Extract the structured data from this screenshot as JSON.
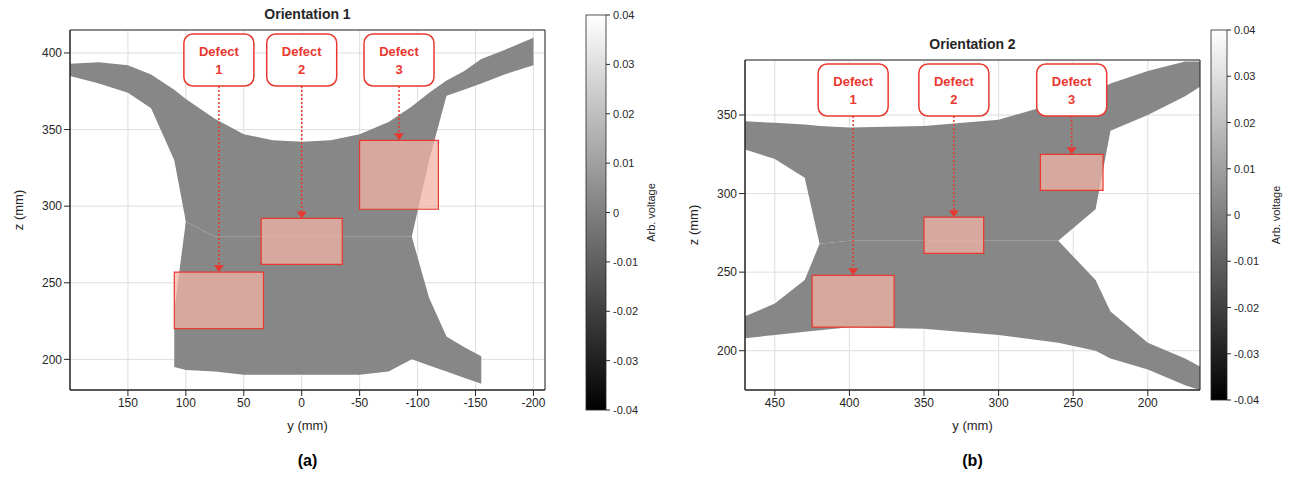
{
  "chart_data": [
    {
      "type": "heatmap",
      "title": "Orientation 1",
      "panel_label": "(a)",
      "x_label": "y (mm)",
      "y_label": "z (mm)",
      "xlim": [
        200,
        -210
      ],
      "xticks": [
        150,
        100,
        50,
        0,
        -50,
        -100,
        -150,
        -200
      ],
      "ylim": [
        180,
        415
      ],
      "yticks": [
        200,
        250,
        300,
        350,
        400
      ],
      "grid": true,
      "specimen": {
        "color": "#878787",
        "y": [
          200,
          175,
          150,
          130,
          110,
          100,
          75,
          50,
          25,
          0,
          -25,
          -50,
          -75,
          -95,
          -110,
          -125,
          -140,
          -155,
          -175,
          -200
        ],
        "upper": [
          [
            385,
            393
          ],
          [
            380,
            394
          ],
          [
            374,
            392
          ],
          [
            364,
            386
          ],
          [
            330,
            376
          ],
          [
            290,
            370
          ],
          [
            280,
            357
          ],
          [
            280,
            347
          ],
          [
            280,
            343
          ],
          [
            280,
            342
          ],
          [
            280,
            343
          ],
          [
            280,
            347
          ],
          [
            280,
            355
          ],
          [
            280,
            365
          ],
          [
            330,
            374
          ],
          [
            372,
            382
          ],
          [
            376,
            388
          ],
          [
            380,
            396
          ],
          [
            386,
            402
          ],
          [
            392,
            410
          ]
        ],
        "lower": [
          null,
          null,
          null,
          null,
          [
            195,
            232
          ],
          [
            193,
            290
          ],
          [
            192,
            280
          ],
          [
            190,
            280
          ],
          [
            190,
            280
          ],
          [
            190,
            280
          ],
          [
            190,
            280
          ],
          [
            190,
            280
          ],
          [
            192,
            280
          ],
          [
            200,
            280
          ],
          [
            196,
            240
          ],
          [
            192,
            215
          ],
          [
            188,
            208
          ],
          [
            184,
            202
          ],
          null,
          null
        ]
      },
      "defects": [
        {
          "label": "Defect 1",
          "y": [
            110,
            33
          ],
          "z": [
            220,
            257
          ],
          "color": "#e8382f"
        },
        {
          "label": "Defect 2",
          "y": [
            35,
            -35
          ],
          "z": [
            262,
            292
          ],
          "color": "#e8382f"
        },
        {
          "label": "Defect 3",
          "y": [
            -50,
            -118
          ],
          "z": [
            298,
            343
          ],
          "color": "#e8382f"
        }
      ],
      "colorbar": {
        "range": [
          -0.04,
          0.04
        ],
        "ticks": [
          0.04,
          0.03,
          0.02,
          0.01,
          0,
          -0.01,
          -0.02,
          -0.03,
          -0.04
        ],
        "label": "Arb. voltage"
      }
    },
    {
      "type": "heatmap",
      "title": "Orientation 2",
      "panel_label": "(b)",
      "x_label": "y (mm)",
      "y_label": "z (mm)",
      "xlim": [
        470,
        165
      ],
      "xticks": [
        450,
        400,
        350,
        300,
        250,
        200
      ],
      "ylim": [
        175,
        385
      ],
      "yticks": [
        200,
        250,
        300,
        350
      ],
      "grid": true,
      "specimen": {
        "color": "#878787",
        "y": [
          470,
          450,
          430,
          420,
          400,
          350,
          300,
          260,
          235,
          225,
          200,
          175,
          165
        ],
        "upper": [
          [
            328,
            346
          ],
          [
            322,
            345
          ],
          [
            310,
            344
          ],
          [
            268,
            343
          ],
          [
            270,
            342
          ],
          [
            270,
            343
          ],
          [
            270,
            347
          ],
          [
            270,
            358
          ],
          [
            290,
            365
          ],
          [
            340,
            370
          ],
          [
            350,
            378
          ],
          [
            362,
            384
          ],
          [
            368,
            384
          ]
        ],
        "lower": [
          [
            208,
            222
          ],
          [
            210,
            230
          ],
          [
            212,
            245
          ],
          [
            213,
            268
          ],
          [
            215,
            270
          ],
          [
            214,
            270
          ],
          [
            210,
            270
          ],
          [
            205,
            270
          ],
          [
            200,
            245
          ],
          [
            195,
            225
          ],
          [
            188,
            205
          ],
          [
            178,
            195
          ],
          [
            175,
            190
          ]
        ]
      },
      "defects": [
        {
          "label": "Defect 1",
          "y": [
            425,
            370
          ],
          "z": [
            215,
            248
          ],
          "color": "#e8382f"
        },
        {
          "label": "Defect 2",
          "y": [
            350,
            310
          ],
          "z": [
            262,
            285
          ],
          "color": "#e8382f"
        },
        {
          "label": "Defect 3",
          "y": [
            272,
            230
          ],
          "z": [
            302,
            325
          ],
          "color": "#e8382f"
        }
      ],
      "colorbar": {
        "range": [
          -0.04,
          0.04
        ],
        "ticks": [
          0.04,
          0.03,
          0.02,
          0.01,
          0,
          -0.01,
          -0.02,
          -0.03,
          -0.04
        ],
        "label": "Arb. voltage"
      }
    }
  ]
}
